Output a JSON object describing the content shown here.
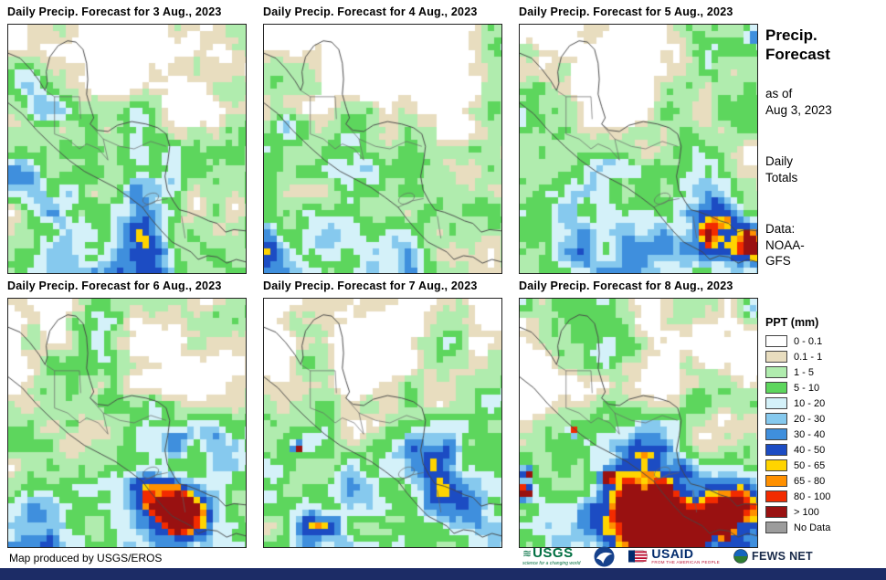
{
  "panels": [
    {
      "title": "Daily Precip. Forecast for 3 Aug., 2023"
    },
    {
      "title": "Daily Precip. Forecast for 4 Aug., 2023"
    },
    {
      "title": "Daily Precip. Forecast for 5 Aug., 2023"
    },
    {
      "title": "Daily Precip. Forecast for 6 Aug., 2023"
    },
    {
      "title": "Daily Precip. Forecast for 7 Aug., 2023"
    },
    {
      "title": "Daily Precip. Forecast for 8 Aug., 2023"
    }
  ],
  "sidebar": {
    "title_1": "Precip.",
    "title_2": "Forecast",
    "asof_1": "as of",
    "asof_2": "Aug 3, 2023",
    "totals_1": "Daily",
    "totals_2": "Totals",
    "data_1": "Data:",
    "data_2": "NOAA-",
    "data_3": "GFS"
  },
  "legend": {
    "title": "PPT (mm)",
    "items": [
      {
        "label": "0 - 0.1",
        "color": "#ffffff"
      },
      {
        "label": "0.1 - 1",
        "color": "#e8ddbf"
      },
      {
        "label": "1 - 5",
        "color": "#b0ecae"
      },
      {
        "label": "5 - 10",
        "color": "#5dd65d"
      },
      {
        "label": "10 - 20",
        "color": "#d4f1f9"
      },
      {
        "label": "20 - 30",
        "color": "#86c9ee"
      },
      {
        "label": "30 - 40",
        "color": "#3f8fdd"
      },
      {
        "label": "40 - 50",
        "color": "#1c4cc3"
      },
      {
        "label": "50 - 65",
        "color": "#ffd400"
      },
      {
        "label": "65 - 80",
        "color": "#ff9000"
      },
      {
        "label": "80 - 100",
        "color": "#f22b00"
      },
      {
        "label": "> 100",
        "color": "#991111"
      },
      {
        "label": "No Data",
        "color": "#9c9c9c"
      }
    ]
  },
  "footer": {
    "credit": "Map produced by USGS/EROS",
    "usgs_name": "USGS",
    "usgs_tagline": "science for a changing world",
    "usaid_name": "USAID",
    "usaid_tagline": "FROM THE AMERICAN PEOPLE",
    "fewsnet_name": "FEWS NET"
  },
  "colors": {
    "bottom_bar": "#1c2c66"
  }
}
